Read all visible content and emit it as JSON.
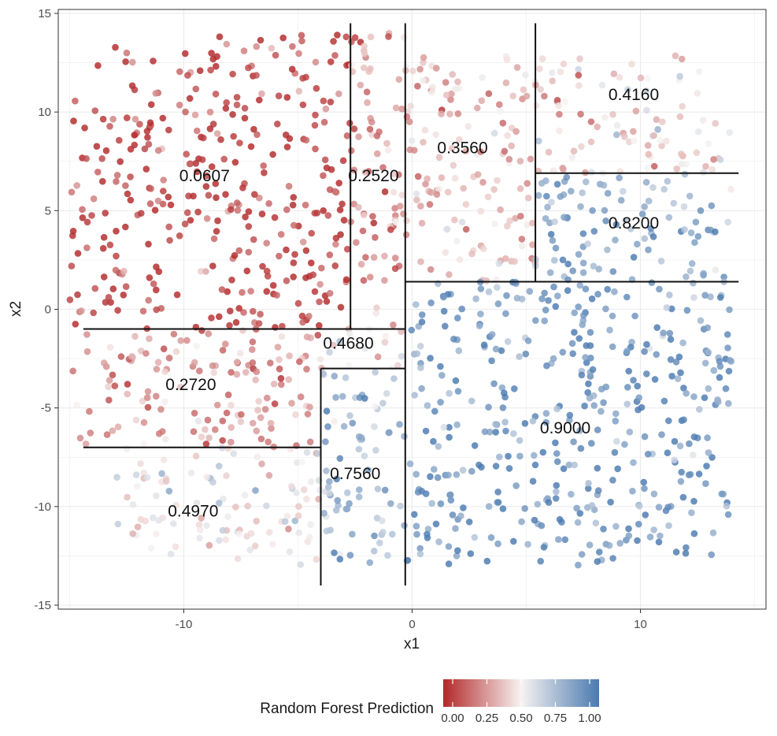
{
  "chart_data": {
    "type": "scatter",
    "title": "",
    "xlabel": "x1",
    "ylabel": "x2",
    "xlim": [
      -15.5,
      15.5
    ],
    "ylim": [
      -15.2,
      15.2
    ],
    "x_ticks": [
      -10,
      0,
      10
    ],
    "y_ticks": [
      -15,
      -10,
      -5,
      0,
      5,
      10,
      15
    ],
    "grid": true,
    "color_scale": {
      "title": "Random Forest Prediction",
      "low_color": "#b2282a",
      "mid_color": "#f7f3f1",
      "high_color": "#4a7ab0",
      "ticks": [
        "0.00",
        "0.25",
        "0.50",
        "0.75",
        "1.00"
      ],
      "placement": "bottom"
    },
    "split_lines": [
      {
        "x1": -2.7,
        "y1": -1.0,
        "x2": -2.7,
        "y2": 14.5
      },
      {
        "x1": -0.3,
        "y1": -14.0,
        "x2": -0.3,
        "y2": 14.5
      },
      {
        "x1": 5.4,
        "y1": 1.4,
        "x2": 5.4,
        "y2": 14.5
      },
      {
        "x1": 5.4,
        "y1": 6.9,
        "x2": 14.3,
        "y2": 6.9
      },
      {
        "x1": -0.3,
        "y1": 1.4,
        "x2": 14.3,
        "y2": 1.4
      },
      {
        "x1": -14.4,
        "y1": -1.0,
        "x2": -0.3,
        "y2": -1.0
      },
      {
        "x1": -4.0,
        "y1": -3.0,
        "x2": -0.3,
        "y2": -3.0
      },
      {
        "x1": -4.0,
        "y1": -14.0,
        "x2": -4.0,
        "y2": -3.0
      },
      {
        "x1": -14.4,
        "y1": -7.0,
        "x2": -4.0,
        "y2": -7.0
      }
    ],
    "regions": [
      {
        "label": "0.0607",
        "x": -10.2,
        "y": 6.5,
        "x_min": -15,
        "x_max": -2.7,
        "y_min": -1,
        "y_max": 14,
        "value": 0.0607
      },
      {
        "label": "0.2520",
        "x": -2.8,
        "y": 6.5,
        "x_min": -2.7,
        "x_max": -0.3,
        "y_min": -1,
        "y_max": 14,
        "value": 0.252
      },
      {
        "label": "0.3560",
        "x": 1.1,
        "y": 7.9,
        "x_min": -0.3,
        "x_max": 5.4,
        "y_min": 1.4,
        "y_max": 13,
        "value": 0.356
      },
      {
        "label": "0.4160",
        "x": 8.6,
        "y": 10.6,
        "x_min": 5.4,
        "x_max": 14,
        "y_min": 6.9,
        "y_max": 13,
        "value": 0.416
      },
      {
        "label": "0.8200",
        "x": 8.6,
        "y": 4.1,
        "x_min": 5.4,
        "x_max": 14,
        "y_min": 1.4,
        "y_max": 6.9,
        "value": 0.82
      },
      {
        "label": "0.4680",
        "x": -3.9,
        "y": -2.0,
        "x_min": -4.0,
        "x_max": -0.3,
        "y_min": -3.0,
        "y_max": -1.0,
        "value": 0.468
      },
      {
        "label": "0.2720",
        "x": -10.8,
        "y": -4.1,
        "x_min": -15,
        "x_max": -4.0,
        "y_min": -7,
        "y_max": -1,
        "value": 0.272
      },
      {
        "label": "0.9000",
        "x": 5.6,
        "y": -6.3,
        "x_min": -0.3,
        "x_max": 14,
        "y_min": -13,
        "y_max": 1.4,
        "value": 0.9
      },
      {
        "label": "0.7560",
        "x": -3.6,
        "y": -8.6,
        "x_min": -4.0,
        "x_max": -0.3,
        "y_min": -13,
        "y_max": -3.0,
        "value": 0.756
      },
      {
        "label": "0.4970",
        "x": -10.7,
        "y": -10.5,
        "x_min": -13,
        "x_max": -4.0,
        "y_min": -13,
        "y_max": -7,
        "value": 0.497
      }
    ]
  }
}
